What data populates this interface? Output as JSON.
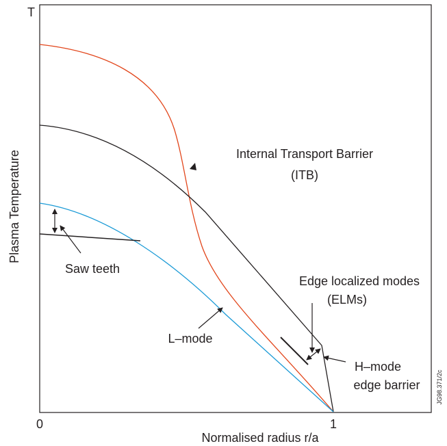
{
  "axes": {
    "y_label": "Plasma Temperature",
    "x_label": "Normalised radius r/a",
    "y_top": "T",
    "x_ticks": [
      "0",
      "1"
    ]
  },
  "labels": {
    "itb_line1": "Internal Transport Barrier",
    "itb_line2": "(ITB)",
    "saw_teeth": "Saw teeth",
    "l_mode": "L–mode",
    "elms_line1": "Edge localized modes",
    "elms_line2": "(ELMs)",
    "h_mode_line1": "H–mode",
    "h_mode_line2": "edge barrier"
  },
  "figure_id": "JG98.371/2c"
}
